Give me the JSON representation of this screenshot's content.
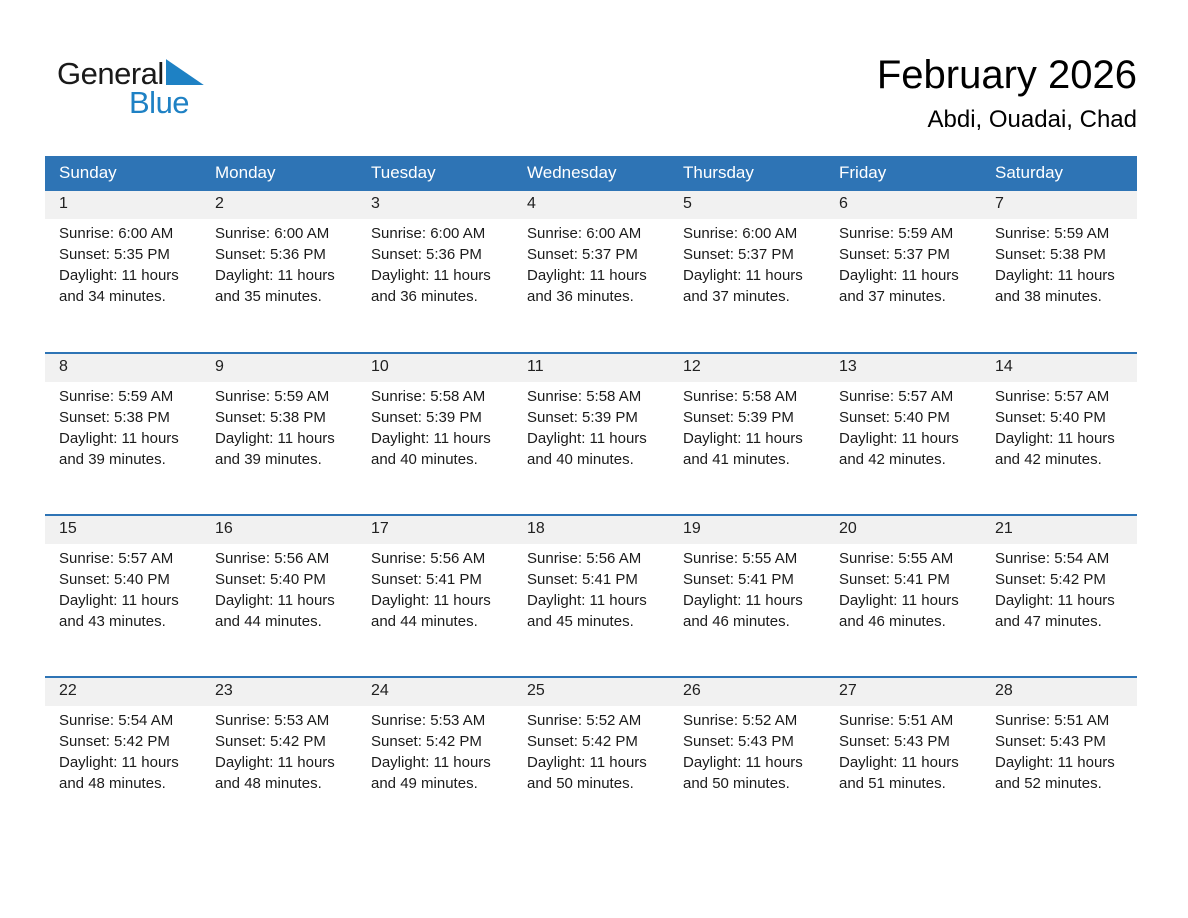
{
  "logo": {
    "general": "General",
    "blue": "Blue"
  },
  "header": {
    "month_title": "February 2026",
    "location": "Abdi, Ouadai, Chad"
  },
  "colors": {
    "header_bar_blue": "#2e74b5",
    "row_divider_blue": "#2e74b5",
    "day_band_gray": "#f1f1f1",
    "logo_blue": "#1e81c4"
  },
  "calendar": {
    "day_headers": [
      "Sunday",
      "Monday",
      "Tuesday",
      "Wednesday",
      "Thursday",
      "Friday",
      "Saturday"
    ],
    "weeks": [
      [
        {
          "day": "1",
          "sunrise": "Sunrise: 6:00 AM",
          "sunset": "Sunset: 5:35 PM",
          "daylight": "Daylight: 11 hours and 34 minutes."
        },
        {
          "day": "2",
          "sunrise": "Sunrise: 6:00 AM",
          "sunset": "Sunset: 5:36 PM",
          "daylight": "Daylight: 11 hours and 35 minutes."
        },
        {
          "day": "3",
          "sunrise": "Sunrise: 6:00 AM",
          "sunset": "Sunset: 5:36 PM",
          "daylight": "Daylight: 11 hours and 36 minutes."
        },
        {
          "day": "4",
          "sunrise": "Sunrise: 6:00 AM",
          "sunset": "Sunset: 5:37 PM",
          "daylight": "Daylight: 11 hours and 36 minutes."
        },
        {
          "day": "5",
          "sunrise": "Sunrise: 6:00 AM",
          "sunset": "Sunset: 5:37 PM",
          "daylight": "Daylight: 11 hours and 37 minutes."
        },
        {
          "day": "6",
          "sunrise": "Sunrise: 5:59 AM",
          "sunset": "Sunset: 5:37 PM",
          "daylight": "Daylight: 11 hours and 37 minutes."
        },
        {
          "day": "7",
          "sunrise": "Sunrise: 5:59 AM",
          "sunset": "Sunset: 5:38 PM",
          "daylight": "Daylight: 11 hours and 38 minutes."
        }
      ],
      [
        {
          "day": "8",
          "sunrise": "Sunrise: 5:59 AM",
          "sunset": "Sunset: 5:38 PM",
          "daylight": "Daylight: 11 hours and 39 minutes."
        },
        {
          "day": "9",
          "sunrise": "Sunrise: 5:59 AM",
          "sunset": "Sunset: 5:38 PM",
          "daylight": "Daylight: 11 hours and 39 minutes."
        },
        {
          "day": "10",
          "sunrise": "Sunrise: 5:58 AM",
          "sunset": "Sunset: 5:39 PM",
          "daylight": "Daylight: 11 hours and 40 minutes."
        },
        {
          "day": "11",
          "sunrise": "Sunrise: 5:58 AM",
          "sunset": "Sunset: 5:39 PM",
          "daylight": "Daylight: 11 hours and 40 minutes."
        },
        {
          "day": "12",
          "sunrise": "Sunrise: 5:58 AM",
          "sunset": "Sunset: 5:39 PM",
          "daylight": "Daylight: 11 hours and 41 minutes."
        },
        {
          "day": "13",
          "sunrise": "Sunrise: 5:57 AM",
          "sunset": "Sunset: 5:40 PM",
          "daylight": "Daylight: 11 hours and 42 minutes."
        },
        {
          "day": "14",
          "sunrise": "Sunrise: 5:57 AM",
          "sunset": "Sunset: 5:40 PM",
          "daylight": "Daylight: 11 hours and 42 minutes."
        }
      ],
      [
        {
          "day": "15",
          "sunrise": "Sunrise: 5:57 AM",
          "sunset": "Sunset: 5:40 PM",
          "daylight": "Daylight: 11 hours and 43 minutes."
        },
        {
          "day": "16",
          "sunrise": "Sunrise: 5:56 AM",
          "sunset": "Sunset: 5:40 PM",
          "daylight": "Daylight: 11 hours and 44 minutes."
        },
        {
          "day": "17",
          "sunrise": "Sunrise: 5:56 AM",
          "sunset": "Sunset: 5:41 PM",
          "daylight": "Daylight: 11 hours and 44 minutes."
        },
        {
          "day": "18",
          "sunrise": "Sunrise: 5:56 AM",
          "sunset": "Sunset: 5:41 PM",
          "daylight": "Daylight: 11 hours and 45 minutes."
        },
        {
          "day": "19",
          "sunrise": "Sunrise: 5:55 AM",
          "sunset": "Sunset: 5:41 PM",
          "daylight": "Daylight: 11 hours and 46 minutes."
        },
        {
          "day": "20",
          "sunrise": "Sunrise: 5:55 AM",
          "sunset": "Sunset: 5:41 PM",
          "daylight": "Daylight: 11 hours and 46 minutes."
        },
        {
          "day": "21",
          "sunrise": "Sunrise: 5:54 AM",
          "sunset": "Sunset: 5:42 PM",
          "daylight": "Daylight: 11 hours and 47 minutes."
        }
      ],
      [
        {
          "day": "22",
          "sunrise": "Sunrise: 5:54 AM",
          "sunset": "Sunset: 5:42 PM",
          "daylight": "Daylight: 11 hours and 48 minutes."
        },
        {
          "day": "23",
          "sunrise": "Sunrise: 5:53 AM",
          "sunset": "Sunset: 5:42 PM",
          "daylight": "Daylight: 11 hours and 48 minutes."
        },
        {
          "day": "24",
          "sunrise": "Sunrise: 5:53 AM",
          "sunset": "Sunset: 5:42 PM",
          "daylight": "Daylight: 11 hours and 49 minutes."
        },
        {
          "day": "25",
          "sunrise": "Sunrise: 5:52 AM",
          "sunset": "Sunset: 5:42 PM",
          "daylight": "Daylight: 11 hours and 50 minutes."
        },
        {
          "day": "26",
          "sunrise": "Sunrise: 5:52 AM",
          "sunset": "Sunset: 5:43 PM",
          "daylight": "Daylight: 11 hours and 50 minutes."
        },
        {
          "day": "27",
          "sunrise": "Sunrise: 5:51 AM",
          "sunset": "Sunset: 5:43 PM",
          "daylight": "Daylight: 11 hours and 51 minutes."
        },
        {
          "day": "28",
          "sunrise": "Sunrise: 5:51 AM",
          "sunset": "Sunset: 5:43 PM",
          "daylight": "Daylight: 11 hours and 52 minutes."
        }
      ]
    ]
  }
}
